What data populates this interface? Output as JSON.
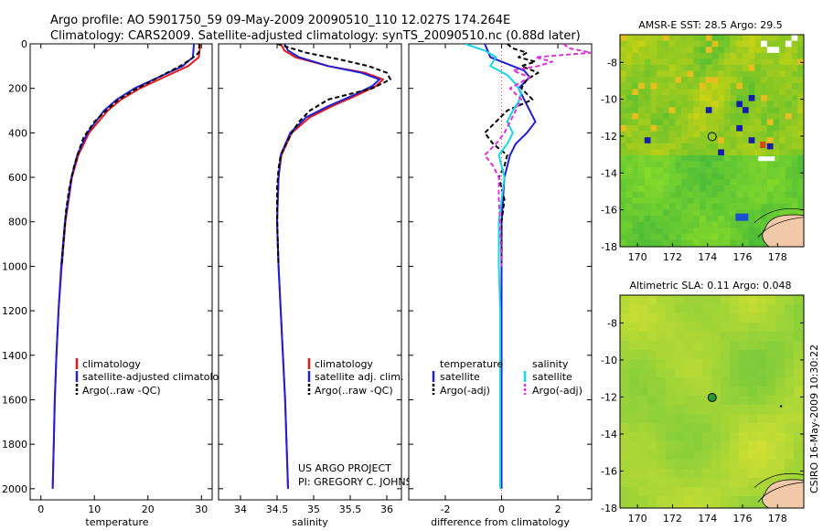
{
  "header": {
    "line1": "Argo profile: AO 5901750_59 09-May-2009 20090510_110 12.027S 174.264E",
    "line2": "Climatology: CARS2009. Satellite-adjusted climatology: synTS_20090510.nc (0.88d later)"
  },
  "side_label": "CSIRO 16-May-2009 10:30:22",
  "credit": {
    "line1": "US ARGO PROJECT",
    "line2": "PI: GREGORY C. JOHNSON"
  },
  "colors": {
    "climatology": "#e41a1c",
    "satellite": "#1f1fd6",
    "argo": "#000000",
    "satellite_salinity": "#19d6e6",
    "argo_salinity": "#e030e0"
  },
  "chart_data": [
    {
      "id": "temperature",
      "type": "line",
      "xlabel": "temperature",
      "ylabel": "",
      "xlim": [
        -2,
        32
      ],
      "ylim": [
        2050,
        0
      ],
      "xticks": [
        0,
        10,
        20,
        30
      ],
      "yticks": [
        0,
        200,
        400,
        600,
        800,
        1000,
        1200,
        1400,
        1600,
        1800,
        2000
      ],
      "legend": [
        "climatology",
        "satellite-adjusted climatology",
        "Argo(..raw -QC)"
      ],
      "series": [
        {
          "name": "climatology",
          "color": "#e41a1c",
          "dash": "",
          "depth": [
            0,
            60,
            100,
            150,
            200,
            250,
            300,
            400,
            500,
            600,
            800,
            1000,
            1200,
            1400,
            1600,
            1800,
            2000
          ],
          "values": [
            29.8,
            29.5,
            27.5,
            23.0,
            18.5,
            15.0,
            12.5,
            9.0,
            7.0,
            5.8,
            4.6,
            3.9,
            3.3,
            2.9,
            2.6,
            2.4,
            2.2
          ]
        },
        {
          "name": "satellite-adjusted climatology",
          "color": "#1f1fd6",
          "dash": "",
          "depth": [
            0,
            60,
            100,
            150,
            200,
            250,
            300,
            400,
            500,
            600,
            800,
            1000,
            1200,
            1400,
            1600,
            1800,
            2000
          ],
          "values": [
            28.6,
            28.4,
            26.5,
            22.0,
            17.5,
            14.2,
            11.8,
            8.7,
            6.8,
            5.7,
            4.5,
            3.8,
            3.3,
            2.9,
            2.6,
            2.4,
            2.2
          ]
        },
        {
          "name": "Argo(..raw -QC)",
          "color": "#000000",
          "dash": "5,3",
          "depth": [
            0,
            40,
            70,
            100,
            150,
            200,
            250,
            300,
            350,
            420,
            480,
            550,
            650,
            750,
            900,
            1000
          ],
          "values": [
            29.6,
            29.5,
            28.0,
            26.0,
            22.0,
            18.0,
            14.5,
            12.2,
            10.0,
            8.0,
            7.1,
            6.2,
            5.3,
            4.7,
            4.2,
            3.9
          ]
        }
      ]
    },
    {
      "id": "salinity",
      "type": "line",
      "xlabel": "salinity",
      "xlim": [
        33.7,
        36.2
      ],
      "ylim": [
        2050,
        0
      ],
      "xticks": [
        34,
        34.5,
        35,
        35.5,
        36
      ],
      "xticklabels": [
        "34",
        "34.5",
        "35",
        "35.5",
        "36"
      ],
      "legend": [
        "climatology",
        "satellite adj. clim.",
        "Argo(..raw -QC)"
      ],
      "series": [
        {
          "name": "climatology",
          "color": "#e41a1c",
          "dash": "",
          "depth": [
            0,
            30,
            60,
            100,
            130,
            160,
            190,
            230,
            280,
            330,
            400,
            500,
            600,
            800,
            1000,
            1200,
            1400,
            1600,
            1800,
            2000
          ],
          "values": [
            34.55,
            34.6,
            34.75,
            35.2,
            35.7,
            35.95,
            35.85,
            35.6,
            35.25,
            34.95,
            34.7,
            34.56,
            34.52,
            34.5,
            34.52,
            34.55,
            34.58,
            34.61,
            34.63,
            34.65
          ]
        },
        {
          "name": "satellite adj. clim.",
          "color": "#1f1fd6",
          "dash": "",
          "depth": [
            0,
            30,
            60,
            100,
            130,
            160,
            190,
            230,
            280,
            330,
            400,
            500,
            600,
            800,
            1000,
            1200,
            1400,
            1600,
            1800,
            2000
          ],
          "values": [
            34.6,
            34.65,
            34.8,
            35.2,
            35.65,
            35.9,
            35.8,
            35.55,
            35.2,
            34.9,
            34.68,
            34.55,
            34.52,
            34.5,
            34.52,
            34.55,
            34.58,
            34.61,
            34.63,
            34.65
          ]
        },
        {
          "name": "Argo(..raw -QC)",
          "color": "#000000",
          "dash": "5,3",
          "depth": [
            0,
            20,
            40,
            70,
            100,
            130,
            160,
            200,
            250,
            300,
            350,
            400,
            450,
            500,
            560,
            650,
            750,
            900,
            1000
          ],
          "values": [
            34.5,
            34.7,
            34.9,
            35.35,
            35.75,
            36.0,
            36.05,
            35.8,
            35.2,
            34.95,
            34.8,
            34.7,
            34.62,
            34.55,
            34.52,
            34.5,
            34.5,
            34.51,
            34.52
          ]
        }
      ]
    },
    {
      "id": "difference",
      "type": "line",
      "xlabel": "difference from climatology",
      "xlim": [
        -3.3,
        3.2
      ],
      "ylim": [
        2050,
        0
      ],
      "xticks": [
        -2,
        0,
        2
      ],
      "xticklabels": [
        "-2",
        "0",
        "2"
      ],
      "legend_left": {
        "title": "temperature",
        "items": [
          "satellite",
          "Argo(-adj)"
        ]
      },
      "legend_right": {
        "title": "salinity",
        "items": [
          "satellite",
          "Argo(-adj)"
        ]
      },
      "series": [
        {
          "name": "temperature satellite",
          "color": "#1f1fd6",
          "dash": "",
          "depth": [
            0,
            30,
            60,
            90,
            120,
            150,
            200,
            250,
            300,
            350,
            400,
            450,
            500,
            600,
            800,
            1000,
            1400,
            2000
          ],
          "values": [
            -0.6,
            -0.5,
            -0.4,
            0.2,
            0.8,
            1.0,
            0.6,
            0.8,
            1.0,
            1.2,
            0.9,
            0.5,
            0.3,
            0.1,
            0.0,
            0.0,
            0.0,
            0.0
          ]
        },
        {
          "name": "temperature Argo(-adj)",
          "color": "#000000",
          "dash": "5,3",
          "depth": [
            0,
            20,
            40,
            60,
            80,
            100,
            130,
            160,
            200,
            250,
            300,
            350,
            400,
            450,
            500,
            550,
            600,
            700,
            800,
            1000
          ],
          "values": [
            0.2,
            0.4,
            0.9,
            0.6,
            1.2,
            0.7,
            1.3,
            0.9,
            0.7,
            1.1,
            0.2,
            -0.2,
            -0.6,
            -0.3,
            0.2,
            0.1,
            -0.1,
            0.1,
            0.0,
            0.0
          ]
        },
        {
          "name": "salinity satellite",
          "color": "#19d6e6",
          "dash": "",
          "depth": [
            0,
            30,
            60,
            100,
            140,
            180,
            220,
            260,
            300,
            350,
            400,
            450,
            500,
            600,
            800,
            1000,
            1200,
            1400,
            1600,
            1800,
            2000
          ],
          "values": [
            -1.3,
            -0.6,
            -0.2,
            -0.4,
            0.2,
            0.5,
            0.7,
            0.6,
            0.4,
            0.2,
            0.4,
            0.2,
            -0.1,
            0.1,
            -0.1,
            -0.1,
            -0.05,
            -0.05,
            -0.05,
            -0.05,
            -0.05
          ]
        },
        {
          "name": "salinity Argo(-adj)",
          "color": "#e030e0",
          "dash": "5,3",
          "depth": [
            0,
            20,
            40,
            60,
            80,
            100,
            120,
            150,
            200,
            250,
            300,
            350,
            400,
            450,
            500,
            550,
            600,
            700,
            800,
            1000
          ],
          "values": [
            2.2,
            2.4,
            3.2,
            1.2,
            1.8,
            1.3,
            0.4,
            1.0,
            0.3,
            0.7,
            0.5,
            0.3,
            0.1,
            -0.2,
            -0.6,
            -0.3,
            -0.1,
            -0.1,
            -0.05,
            0.0
          ]
        }
      ]
    },
    {
      "id": "sst_map",
      "type": "heatmap",
      "title": "AMSR-E SST: 28.5 Argo: 29.5",
      "xlim": [
        169,
        179.5
      ],
      "ylim": [
        -18,
        -6.5
      ],
      "xticks": [
        170,
        172,
        174,
        176,
        178
      ],
      "yticks": [
        -8,
        -10,
        -12,
        -14,
        -16,
        -18
      ],
      "profile_marker": {
        "lon": 174.264,
        "lat": -12.027
      }
    },
    {
      "id": "sla_map",
      "type": "heatmap",
      "title": "Altimetric SLA: 0.11 Argo: 0.048",
      "xlim": [
        169,
        179.5
      ],
      "ylim": [
        -18,
        -6.5
      ],
      "xticks": [
        170,
        172,
        174,
        176,
        178
      ],
      "yticks": [
        -8,
        -10,
        -12,
        -14,
        -16,
        -18
      ],
      "profile_marker": {
        "lon": 174.264,
        "lat": -12.027
      }
    }
  ]
}
